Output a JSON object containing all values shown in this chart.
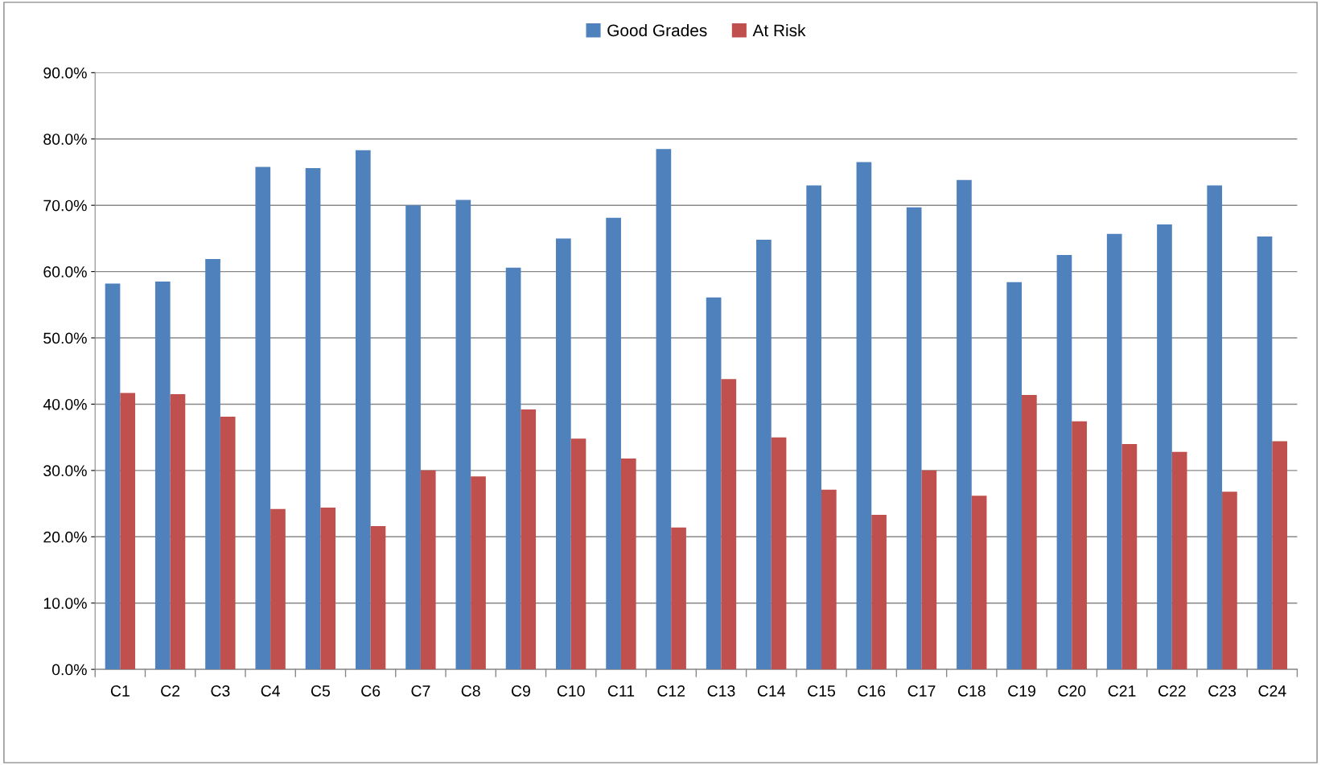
{
  "chart_data": {
    "type": "bar",
    "categories": [
      "C1",
      "C2",
      "C3",
      "C4",
      "C5",
      "C6",
      "C7",
      "C8",
      "C9",
      "C10",
      "C11",
      "C12",
      "C13",
      "C14",
      "C15",
      "C16",
      "C17",
      "C18",
      "C19",
      "C20",
      "C21",
      "C22",
      "C23",
      "C24"
    ],
    "series": [
      {
        "name": "Good Grades",
        "color": "#4f81bd",
        "values": [
          58.2,
          58.5,
          61.9,
          75.8,
          75.6,
          78.3,
          70.0,
          70.8,
          60.6,
          65.0,
          68.1,
          78.5,
          56.1,
          64.8,
          73.0,
          76.5,
          69.7,
          73.8,
          58.4,
          62.5,
          65.7,
          67.1,
          73.0,
          65.3
        ]
      },
      {
        "name": "At Risk",
        "color": "#c0504d",
        "values": [
          41.7,
          41.5,
          38.1,
          24.2,
          24.4,
          21.6,
          30.0,
          29.1,
          39.2,
          34.8,
          31.8,
          21.4,
          43.8,
          35.0,
          27.1,
          23.3,
          30.0,
          26.2,
          41.4,
          37.4,
          34.0,
          32.8,
          26.8,
          34.4
        ]
      }
    ],
    "ylim": [
      0,
      90
    ],
    "yticks": [
      {
        "value": 0,
        "label": "0.0%"
      },
      {
        "value": 10,
        "label": "10.0%"
      },
      {
        "value": 20,
        "label": "20.0%"
      },
      {
        "value": 30,
        "label": "30.0%"
      },
      {
        "value": 40,
        "label": "40.0%"
      },
      {
        "value": 50,
        "label": "50.0%"
      },
      {
        "value": 60,
        "label": "60.0%"
      },
      {
        "value": 70,
        "label": "70.0%"
      },
      {
        "value": 80,
        "label": "80.0%"
      },
      {
        "value": 90,
        "label": "90.0%"
      }
    ],
    "grid": "y",
    "legend": "top"
  }
}
